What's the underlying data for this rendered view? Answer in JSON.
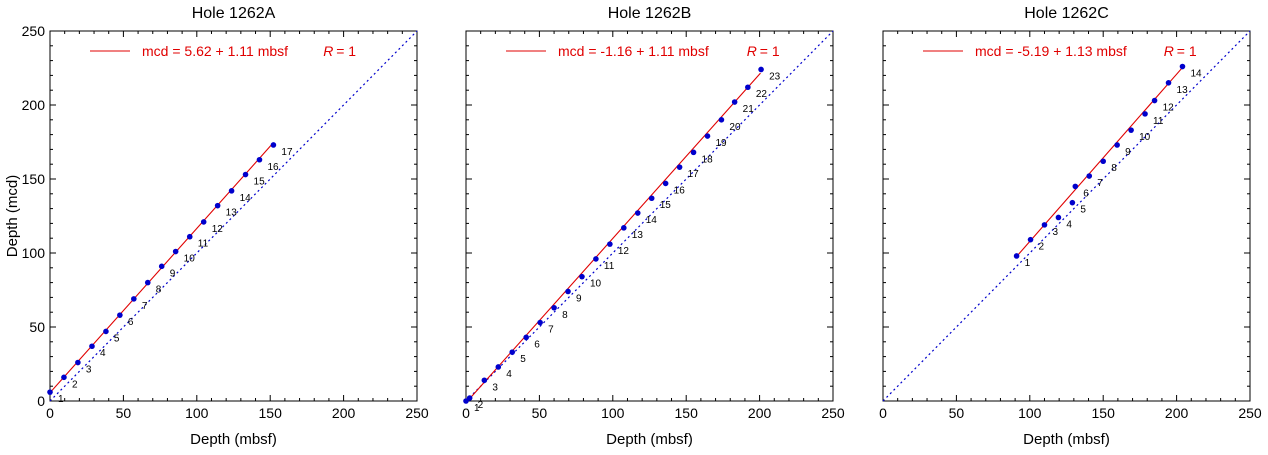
{
  "colors": {
    "fit_line": "#e00000",
    "points": "#0000cc",
    "reference_line": "#0000cc",
    "axis": "#000000",
    "equation_text": "#e00000"
  },
  "chart_data": [
    {
      "type": "scatter",
      "title": "Hole 1262A",
      "xlabel": "Depth (mbsf)",
      "ylabel": "Depth (mcd)",
      "xlim": [
        0,
        250
      ],
      "ylim": [
        0,
        250
      ],
      "xticks": [
        "0",
        "50",
        "100",
        "150",
        "200",
        "250"
      ],
      "yticks": [
        "0",
        "50",
        "100",
        "150",
        "200",
        "250"
      ],
      "show_yticklabels": true,
      "equation": "mcd = 5.62 + 1.11 mbsf",
      "r_label": "R",
      "r_value": "= 1",
      "reference_line": "1:1, dotted",
      "fit": {
        "intercept": 5.62,
        "slope": 1.11,
        "x_range": [
          0,
          150.6
        ]
      },
      "points": [
        {
          "label": "1",
          "x": 0,
          "y": 6
        },
        {
          "label": "2",
          "x": 9.5,
          "y": 16
        },
        {
          "label": "3",
          "x": 19,
          "y": 26
        },
        {
          "label": "4",
          "x": 28.6,
          "y": 37
        },
        {
          "label": "5",
          "x": 38.1,
          "y": 47
        },
        {
          "label": "6",
          "x": 47.6,
          "y": 58
        },
        {
          "label": "7",
          "x": 57.1,
          "y": 69
        },
        {
          "label": "8",
          "x": 66.6,
          "y": 80
        },
        {
          "label": "9",
          "x": 76.1,
          "y": 91
        },
        {
          "label": "10",
          "x": 85.6,
          "y": 101
        },
        {
          "label": "11",
          "x": 95.2,
          "y": 111
        },
        {
          "label": "12",
          "x": 104.7,
          "y": 121
        },
        {
          "label": "13",
          "x": 114.2,
          "y": 132
        },
        {
          "label": "14",
          "x": 123.7,
          "y": 142
        },
        {
          "label": "15",
          "x": 133.2,
          "y": 153
        },
        {
          "label": "16",
          "x": 142.7,
          "y": 163
        },
        {
          "label": "17",
          "x": 152.2,
          "y": 173
        }
      ]
    },
    {
      "type": "scatter",
      "title": "Hole 1262B",
      "xlabel": "Depth (mbsf)",
      "ylabel": "",
      "xlim": [
        0,
        250
      ],
      "ylim": [
        0,
        250
      ],
      "xticks": [
        "0",
        "50",
        "100",
        "150",
        "200",
        "250"
      ],
      "yticks": [
        "0",
        "50",
        "100",
        "150",
        "200",
        "250"
      ],
      "show_yticklabels": false,
      "equation": "mcd = -1.16 + 1.11 mbsf",
      "r_label": "R",
      "r_value": "= 1",
      "reference_line": "1:1, dotted",
      "fit": {
        "intercept": -1.16,
        "slope": 1.11,
        "x_range": [
          0,
          200.6
        ]
      },
      "points": [
        {
          "label": "1",
          "x": 0,
          "y": 0
        },
        {
          "label": "2",
          "x": 2.5,
          "y": 2
        },
        {
          "label": "3",
          "x": 12.5,
          "y": 14
        },
        {
          "label": "4",
          "x": 22,
          "y": 23
        },
        {
          "label": "5",
          "x": 31.5,
          "y": 33
        },
        {
          "label": "6",
          "x": 41,
          "y": 43
        },
        {
          "label": "7",
          "x": 50.5,
          "y": 53
        },
        {
          "label": "8",
          "x": 60,
          "y": 63
        },
        {
          "label": "9",
          "x": 69.5,
          "y": 74
        },
        {
          "label": "10",
          "x": 79,
          "y": 84
        },
        {
          "label": "11",
          "x": 88.5,
          "y": 96
        },
        {
          "label": "12",
          "x": 98,
          "y": 106
        },
        {
          "label": "13",
          "x": 107.5,
          "y": 117
        },
        {
          "label": "14",
          "x": 117,
          "y": 127
        },
        {
          "label": "15",
          "x": 126.5,
          "y": 137
        },
        {
          "label": "16",
          "x": 136,
          "y": 147
        },
        {
          "label": "17",
          "x": 145.5,
          "y": 158
        },
        {
          "label": "18",
          "x": 155,
          "y": 168
        },
        {
          "label": "19",
          "x": 164.5,
          "y": 179
        },
        {
          "label": "20",
          "x": 174,
          "y": 190
        },
        {
          "label": "21",
          "x": 183,
          "y": 202
        },
        {
          "label": "22",
          "x": 192,
          "y": 212
        },
        {
          "label": "23",
          "x": 201,
          "y": 224
        }
      ]
    },
    {
      "type": "scatter",
      "title": "Hole 1262C",
      "xlabel": "Depth (mbsf)",
      "ylabel": "",
      "xlim": [
        0,
        250
      ],
      "ylim": [
        0,
        250
      ],
      "xticks": [
        "0",
        "50",
        "100",
        "150",
        "200",
        "250"
      ],
      "yticks": [
        "0",
        "50",
        "100",
        "150",
        "200",
        "250"
      ],
      "show_yticklabels": false,
      "equation": "mcd = -5.19 + 1.13 mbsf",
      "r_label": "R",
      "r_value": "= 1",
      "reference_line": "1:1, dotted",
      "fit": {
        "intercept": -5.19,
        "slope": 1.13,
        "x_range": [
          90.6,
          204.5
        ]
      },
      "points": [
        {
          "label": "1",
          "x": 91,
          "y": 98
        },
        {
          "label": "2",
          "x": 100.5,
          "y": 109
        },
        {
          "label": "3",
          "x": 110,
          "y": 119
        },
        {
          "label": "4",
          "x": 119.5,
          "y": 124
        },
        {
          "label": "5",
          "x": 129,
          "y": 134
        },
        {
          "label": "6",
          "x": 131,
          "y": 145
        },
        {
          "label": "7",
          "x": 140.5,
          "y": 152
        },
        {
          "label": "8",
          "x": 150,
          "y": 162
        },
        {
          "label": "9",
          "x": 159.5,
          "y": 173
        },
        {
          "label": "10",
          "x": 169,
          "y": 183
        },
        {
          "label": "11",
          "x": 178.5,
          "y": 194
        },
        {
          "label": "12",
          "x": 185,
          "y": 203
        },
        {
          "label": "13",
          "x": 194.5,
          "y": 215
        },
        {
          "label": "14",
          "x": 204,
          "y": 226
        }
      ]
    }
  ]
}
